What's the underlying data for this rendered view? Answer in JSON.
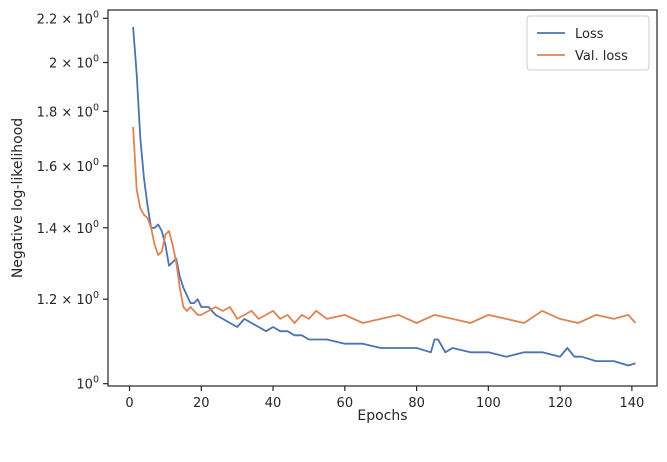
{
  "chart_data": {
    "type": "line",
    "xlabel": "Epochs",
    "ylabel": "Negative log-likelihood",
    "xlim": [
      -6,
      147
    ],
    "ylim": [
      0.995,
      2.24
    ],
    "yscale": "log",
    "grid": false,
    "legend_position": "top-right",
    "x_ticks": [
      0,
      20,
      40,
      60,
      80,
      100,
      120,
      140
    ],
    "x_tick_labels": [
      "0",
      "20",
      "40",
      "60",
      "80",
      "100",
      "120",
      "140"
    ],
    "y_ticks": [
      1.0,
      1.2,
      1.4,
      1.6,
      1.8,
      2.0,
      2.2
    ],
    "y_tick_labels": [
      {
        "coef": "10",
        "exp": "0"
      },
      {
        "coef": "1.2 × 10",
        "exp": "0"
      },
      {
        "coef": "1.4 × 10",
        "exp": "0"
      },
      {
        "coef": "1.6 × 10",
        "exp": "0"
      },
      {
        "coef": "1.8 × 10",
        "exp": "0"
      },
      {
        "coef": "2 × 10",
        "exp": "0"
      },
      {
        "coef": "2.2 × 10",
        "exp": "0"
      }
    ],
    "series": [
      {
        "name": "Loss",
        "color": "#4c72b0",
        "x": [
          1,
          2,
          3,
          4,
          5,
          6,
          7,
          8,
          9,
          10,
          11,
          12,
          13,
          14,
          15,
          16,
          17,
          18,
          19,
          20,
          22,
          24,
          26,
          28,
          30,
          32,
          34,
          36,
          38,
          40,
          42,
          44,
          46,
          48,
          50,
          55,
          60,
          65,
          70,
          75,
          80,
          84,
          85,
          86,
          88,
          90,
          95,
          100,
          105,
          110,
          115,
          120,
          122,
          124,
          126,
          130,
          135,
          139,
          141
        ],
        "y": [
          2.16,
          1.95,
          1.7,
          1.56,
          1.47,
          1.4,
          1.4,
          1.41,
          1.39,
          1.35,
          1.29,
          1.3,
          1.31,
          1.26,
          1.23,
          1.21,
          1.19,
          1.19,
          1.2,
          1.18,
          1.18,
          1.16,
          1.15,
          1.14,
          1.13,
          1.15,
          1.14,
          1.13,
          1.12,
          1.13,
          1.12,
          1.12,
          1.11,
          1.11,
          1.1,
          1.1,
          1.09,
          1.09,
          1.08,
          1.08,
          1.08,
          1.07,
          1.1,
          1.1,
          1.07,
          1.08,
          1.07,
          1.07,
          1.06,
          1.07,
          1.07,
          1.06,
          1.08,
          1.06,
          1.06,
          1.05,
          1.05,
          1.04,
          1.045
        ]
      },
      {
        "name": "Val. loss",
        "color": "#dd8452",
        "x": [
          1,
          2,
          3,
          4,
          5,
          6,
          7,
          8,
          9,
          10,
          11,
          12,
          13,
          14,
          15,
          16,
          17,
          18,
          19,
          20,
          22,
          24,
          26,
          28,
          30,
          32,
          34,
          36,
          38,
          40,
          42,
          44,
          46,
          48,
          50,
          52,
          55,
          60,
          65,
          70,
          75,
          80,
          85,
          90,
          95,
          100,
          105,
          110,
          115,
          120,
          125,
          130,
          135,
          139,
          141
        ],
        "y": [
          1.74,
          1.52,
          1.46,
          1.44,
          1.43,
          1.4,
          1.35,
          1.32,
          1.33,
          1.38,
          1.39,
          1.35,
          1.3,
          1.23,
          1.18,
          1.17,
          1.18,
          1.17,
          1.16,
          1.16,
          1.17,
          1.18,
          1.17,
          1.18,
          1.15,
          1.16,
          1.17,
          1.15,
          1.16,
          1.17,
          1.15,
          1.16,
          1.14,
          1.16,
          1.15,
          1.17,
          1.15,
          1.16,
          1.14,
          1.15,
          1.16,
          1.14,
          1.16,
          1.15,
          1.14,
          1.16,
          1.15,
          1.14,
          1.17,
          1.15,
          1.14,
          1.16,
          1.15,
          1.16,
          1.14
        ]
      }
    ]
  }
}
